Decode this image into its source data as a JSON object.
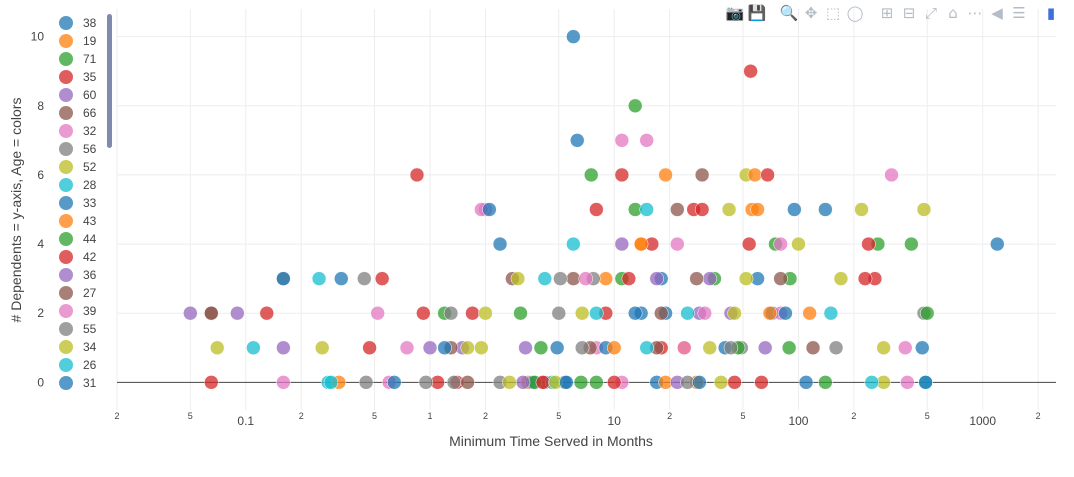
{
  "modebar": {
    "icons": [
      "camera-icon",
      "save-icon",
      "sep",
      "zoom-icon",
      "pan-icon",
      "box-select-icon",
      "lasso-icon",
      "sep",
      "zoom-in-icon",
      "zoom-out-icon",
      "autoscale-icon",
      "home-icon",
      "spike-lines-icon",
      "hover-closest-icon",
      "hover-compare-icon",
      "sep",
      "plotly-logo-icon"
    ],
    "glyphs": {
      "camera-icon": "📷",
      "save-icon": "💾",
      "zoom-icon": "🔍",
      "pan-icon": "✥",
      "box-select-icon": "⬚",
      "lasso-icon": "◯",
      "zoom-in-icon": "⊞",
      "zoom-out-icon": "⊟",
      "autoscale-icon": "⤢",
      "home-icon": "⌂",
      "spike-lines-icon": "⋯",
      "hover-closest-icon": "◀",
      "hover-compare-icon": "☰",
      "plotly-logo-icon": "▮"
    }
  },
  "chart_data": {
    "type": "scatter",
    "xlabel": "Minimum Time Served in Months",
    "ylabel": "# Dependents = y-axis, Age = colors",
    "xscale": "log",
    "xlim": [
      0.02,
      2500
    ],
    "ylim": [
      -0.8,
      10.8
    ],
    "legend_position": "top-left",
    "grid": true,
    "y_ticks": [
      0,
      2,
      4,
      6,
      8,
      10
    ],
    "x_ticks": [
      {
        "value": 0.02,
        "label": "2"
      },
      {
        "value": 0.05,
        "label": "5"
      },
      {
        "value": 0.1,
        "label": "0.1"
      },
      {
        "value": 0.2,
        "label": "2"
      },
      {
        "value": 0.5,
        "label": "5"
      },
      {
        "value": 1,
        "label": "1"
      },
      {
        "value": 2,
        "label": "2"
      },
      {
        "value": 5,
        "label": "5"
      },
      {
        "value": 10,
        "label": "10"
      },
      {
        "value": 20,
        "label": "2"
      },
      {
        "value": 50,
        "label": "5"
      },
      {
        "value": 100,
        "label": "100"
      },
      {
        "value": 200,
        "label": "2"
      },
      {
        "value": 500,
        "label": "5"
      },
      {
        "value": 1000,
        "label": "1000"
      },
      {
        "value": 2000,
        "label": "2"
      }
    ],
    "series": [
      {
        "name": "38",
        "color": "#1f77b4",
        "points": [
          [
            6,
            10
          ],
          [
            6.3,
            7
          ],
          [
            2.4,
            4
          ],
          [
            14,
            2
          ],
          [
            19,
            2
          ],
          [
            40,
            1
          ],
          [
            72,
            2
          ],
          [
            110,
            0
          ],
          [
            1200,
            4
          ],
          [
            4.9,
            1
          ],
          [
            17,
            0
          ],
          [
            5.4,
            0
          ]
        ]
      },
      {
        "name": "19",
        "color": "#ff7f0e",
        "points": [
          [
            3.4,
            0
          ],
          [
            19,
            6
          ],
          [
            14,
            4
          ],
          [
            56,
            5
          ],
          [
            115,
            2
          ],
          [
            19,
            0
          ],
          [
            9,
            3
          ],
          [
            24,
            1
          ]
        ]
      },
      {
        "name": "71",
        "color": "#2ca02c",
        "points": [
          [
            13,
            8
          ],
          [
            7.5,
            6
          ],
          [
            3.1,
            2
          ],
          [
            1.2,
            2
          ],
          [
            13,
            5
          ],
          [
            75,
            4
          ],
          [
            8,
            0
          ],
          [
            35,
            3
          ],
          [
            6.6,
            0
          ],
          [
            89,
            1
          ]
        ]
      },
      {
        "name": "35",
        "color": "#d62728",
        "points": [
          [
            55,
            9
          ],
          [
            11,
            6
          ],
          [
            0.85,
            6
          ],
          [
            0.55,
            3
          ],
          [
            0.13,
            2
          ],
          [
            0.065,
            0
          ],
          [
            8,
            5
          ],
          [
            27,
            5
          ],
          [
            16,
            4
          ],
          [
            1.7,
            2
          ],
          [
            1.1,
            0
          ],
          [
            9,
            2
          ],
          [
            260,
            3
          ],
          [
            1.4,
            0
          ],
          [
            18,
            1
          ],
          [
            45,
            0
          ]
        ]
      },
      {
        "name": "60",
        "color": "#9467bd",
        "points": [
          [
            0.09,
            2
          ],
          [
            11,
            4
          ],
          [
            29,
            2
          ],
          [
            1.5,
            1
          ],
          [
            3.3,
            1
          ],
          [
            22,
            0
          ],
          [
            33,
            3
          ]
        ]
      },
      {
        "name": "66",
        "color": "#8c564b",
        "points": [
          [
            30,
            6
          ],
          [
            22,
            5
          ],
          [
            2.8,
            3
          ],
          [
            0.065,
            2
          ],
          [
            1.3,
            1
          ],
          [
            6,
            3
          ],
          [
            17,
            1
          ],
          [
            4.2,
            0
          ]
        ]
      },
      {
        "name": "32",
        "color": "#e377c2",
        "points": [
          [
            11,
            7
          ],
          [
            15,
            7
          ],
          [
            320,
            6
          ],
          [
            2,
            5
          ],
          [
            22,
            4
          ],
          [
            0.52,
            2
          ],
          [
            1.9,
            5
          ],
          [
            8,
            1
          ],
          [
            80,
            2
          ],
          [
            380,
            1
          ],
          [
            0.6,
            0
          ],
          [
            11,
            0
          ]
        ]
      },
      {
        "name": "56",
        "color": "#7f7f7f",
        "points": [
          [
            0.16,
            3
          ],
          [
            0.44,
            3
          ],
          [
            1.3,
            2
          ],
          [
            5,
            2
          ],
          [
            0.95,
            0
          ],
          [
            2.4,
            0
          ],
          [
            49,
            1
          ],
          [
            480,
            2
          ],
          [
            7.7,
            3
          ]
        ]
      },
      {
        "name": "52",
        "color": "#bcbd22",
        "points": [
          [
            52,
            6
          ],
          [
            42,
            5
          ],
          [
            220,
            5
          ],
          [
            480,
            5
          ],
          [
            3,
            3
          ],
          [
            2,
            2
          ],
          [
            0.26,
            1
          ],
          [
            0.07,
            1
          ],
          [
            1.6,
            1
          ],
          [
            6.7,
            2
          ],
          [
            170,
            3
          ],
          [
            290,
            1
          ],
          [
            38,
            0
          ]
        ]
      },
      {
        "name": "28",
        "color": "#17becf",
        "points": [
          [
            6,
            4
          ],
          [
            15,
            5
          ],
          [
            0.25,
            3
          ],
          [
            0.11,
            1
          ],
          [
            4.6,
            0
          ],
          [
            0.28,
            0
          ],
          [
            25,
            2
          ],
          [
            150,
            2
          ]
        ]
      },
      {
        "name": "33",
        "color": "#1f77b4",
        "points": [
          [
            2.1,
            5
          ],
          [
            0.33,
            3
          ],
          [
            0.16,
            3
          ],
          [
            95,
            5
          ],
          [
            140,
            5
          ],
          [
            18,
            3
          ],
          [
            3.6,
            0
          ],
          [
            9,
            1
          ],
          [
            470,
            1
          ],
          [
            60,
            3
          ]
        ]
      },
      {
        "name": "43",
        "color": "#ff7f0e",
        "points": [
          [
            58,
            6
          ],
          [
            60,
            5
          ],
          [
            14,
            4
          ],
          [
            0.32,
            0
          ],
          [
            10,
            1
          ],
          [
            70,
            2
          ],
          [
            28,
            0
          ]
        ]
      },
      {
        "name": "44",
        "color": "#2ca02c",
        "points": [
          [
            270,
            4
          ],
          [
            410,
            4
          ],
          [
            90,
            3
          ],
          [
            3.7,
            0
          ],
          [
            4,
            1
          ],
          [
            500,
            2
          ],
          [
            47,
            1
          ],
          [
            11,
            3
          ],
          [
            140,
            0
          ]
        ]
      },
      {
        "name": "42",
        "color": "#d62728",
        "points": [
          [
            68,
            6
          ],
          [
            30,
            5
          ],
          [
            54,
            4
          ],
          [
            4.1,
            0
          ],
          [
            0.92,
            2
          ],
          [
            0.47,
            1
          ],
          [
            240,
            4
          ],
          [
            12,
            3
          ],
          [
            63,
            0
          ],
          [
            230,
            3
          ],
          [
            10,
            0
          ]
        ]
      },
      {
        "name": "36",
        "color": "#9467bd",
        "points": [
          [
            17,
            3
          ],
          [
            1,
            1
          ],
          [
            0.16,
            1
          ],
          [
            0.05,
            2
          ],
          [
            3.2,
            0
          ],
          [
            43,
            2
          ],
          [
            66,
            1
          ]
        ]
      },
      {
        "name": "27",
        "color": "#8c564b",
        "points": [
          [
            0.065,
            2
          ],
          [
            1.6,
            0
          ],
          [
            7.4,
            1
          ],
          [
            28,
            3
          ],
          [
            80,
            3
          ],
          [
            18,
            2
          ],
          [
            120,
            1
          ]
        ]
      },
      {
        "name": "39",
        "color": "#e377c2",
        "points": [
          [
            80,
            4
          ],
          [
            0.75,
            1
          ],
          [
            0.16,
            0
          ],
          [
            390,
            0
          ],
          [
            7,
            3
          ],
          [
            24,
            1
          ],
          [
            31,
            2
          ]
        ]
      },
      {
        "name": "55",
        "color": "#7f7f7f",
        "points": [
          [
            1.35,
            0
          ],
          [
            0.45,
            0
          ],
          [
            5.1,
            3
          ],
          [
            43,
            1
          ],
          [
            6.7,
            1
          ],
          [
            25,
            0
          ],
          [
            160,
            1
          ]
        ]
      },
      {
        "name": "34",
        "color": "#bcbd22",
        "points": [
          [
            100,
            4
          ],
          [
            52,
            3
          ],
          [
            45,
            2
          ],
          [
            1.9,
            1
          ],
          [
            4.8,
            0
          ],
          [
            2.7,
            0
          ],
          [
            290,
            0
          ],
          [
            33,
            1
          ]
        ]
      },
      {
        "name": "26",
        "color": "#17becf",
        "points": [
          [
            0.29,
            0
          ],
          [
            8,
            2
          ],
          [
            250,
            0
          ],
          [
            4.2,
            3
          ],
          [
            15,
            1
          ],
          [
            490,
            0
          ]
        ]
      },
      {
        "name": "31",
        "color": "#1f77b4",
        "points": [
          [
            0.64,
            0
          ],
          [
            490,
            0
          ],
          [
            1.2,
            1
          ],
          [
            5.5,
            0
          ],
          [
            85,
            2
          ],
          [
            13,
            2
          ],
          [
            29,
            0
          ]
        ]
      }
    ]
  }
}
